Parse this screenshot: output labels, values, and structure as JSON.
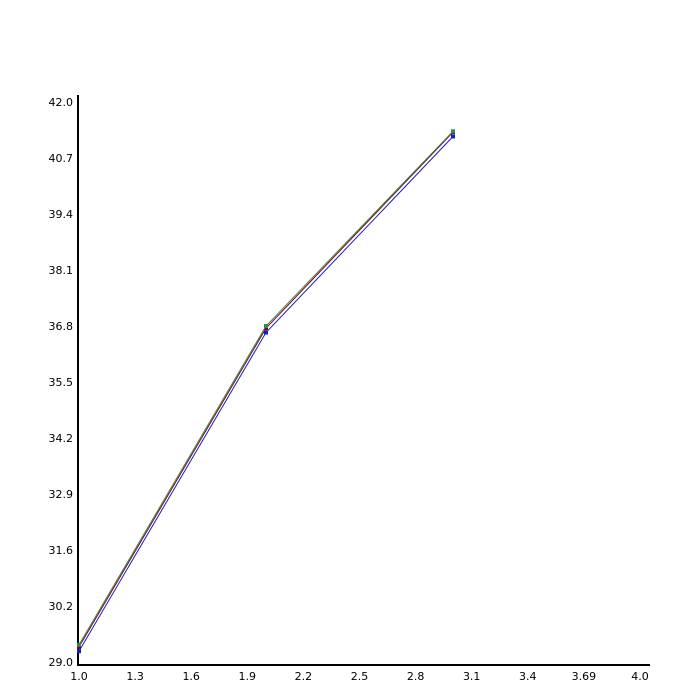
{
  "chart_data": {
    "type": "line",
    "title": "",
    "xlabel": "",
    "ylabel": "",
    "xlim": [
      1.0,
      4.0
    ],
    "ylim": [
      29.0,
      42.0
    ],
    "x_tick_labels": [
      "1.0",
      "1.3",
      "1.6",
      "1.9",
      "2.2",
      "2.5",
      "2.8",
      "3.1",
      "3.4",
      "3.69",
      "4.0"
    ],
    "y_tick_labels": [
      "29.0",
      "30.2",
      "31.6",
      "32.9",
      "34.2",
      "35.5",
      "36.8",
      "38.1",
      "39.4",
      "40.7",
      "42.0"
    ],
    "grid": false,
    "legend": "none",
    "series": [
      {
        "color": "#8b0000",
        "x": [
          1.0,
          2.0,
          3.0
        ],
        "y": [
          29.35,
          36.75,
          41.3
        ]
      },
      {
        "color": "#2e8b57",
        "x": [
          1.0,
          2.0,
          3.0
        ],
        "y": [
          29.4,
          36.8,
          41.32
        ]
      },
      {
        "color": "#1a1acd",
        "x": [
          1.0,
          2.0,
          3.0
        ],
        "y": [
          29.25,
          36.65,
          41.2
        ]
      }
    ]
  }
}
